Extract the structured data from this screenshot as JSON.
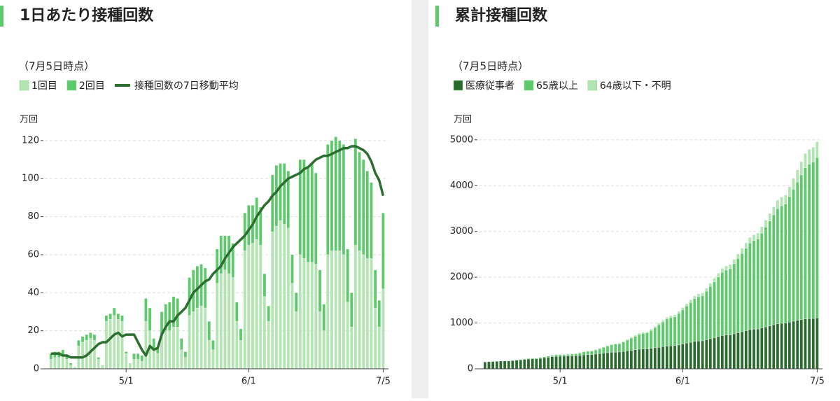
{
  "chart_data": [
    {
      "type": "bar",
      "stacked": true,
      "title": "1日あたり接種回数",
      "subtitle": "（7月5日時点）",
      "y_label": "万回",
      "categories": [
        null,
        null,
        null,
        null,
        null,
        null,
        null,
        null,
        null,
        null,
        null,
        null,
        null,
        null,
        null,
        null,
        null,
        null,
        null,
        "5/1",
        null,
        null,
        null,
        null,
        null,
        null,
        null,
        null,
        null,
        null,
        null,
        null,
        null,
        null,
        null,
        null,
        null,
        null,
        null,
        null,
        null,
        null,
        null,
        null,
        null,
        null,
        null,
        null,
        null,
        null,
        "6/1",
        null,
        null,
        null,
        null,
        null,
        null,
        null,
        null,
        null,
        null,
        null,
        null,
        null,
        null,
        null,
        null,
        null,
        null,
        null,
        null,
        null,
        null,
        null,
        null,
        null,
        null,
        null,
        null,
        null,
        null,
        null,
        null,
        null,
        "7/5"
      ],
      "series": [
        {
          "name": "1回目",
          "type": "bar",
          "color": "#b3e5b3",
          "values": [
            5,
            6,
            6,
            7,
            5,
            2,
            1,
            12,
            14,
            15,
            16,
            15,
            5,
            2,
            25,
            26,
            28,
            26,
            25,
            8,
            3,
            5,
            5,
            4,
            25,
            20,
            10,
            8,
            18,
            20,
            20,
            22,
            22,
            10,
            6,
            28,
            30,
            32,
            33,
            32,
            15,
            10,
            45,
            50,
            52,
            50,
            48,
            25,
            15,
            62,
            65,
            66,
            68,
            65,
            38,
            25,
            72,
            75,
            78,
            76,
            74,
            45,
            30,
            60,
            58,
            56,
            56,
            55,
            30,
            20,
            60,
            62,
            62,
            62,
            60,
            35,
            22,
            65,
            62,
            60,
            58,
            58,
            32,
            22,
            42
          ]
        },
        {
          "name": "2回目",
          "type": "bar",
          "color": "#5cc96a",
          "values": [
            3,
            3,
            3,
            3,
            2,
            1,
            0,
            3,
            3,
            3,
            3,
            3,
            1,
            0,
            3,
            3,
            4,
            3,
            3,
            1,
            0,
            3,
            3,
            3,
            12,
            12,
            6,
            3,
            12,
            14,
            15,
            16,
            15,
            6,
            3,
            20,
            22,
            22,
            22,
            21,
            10,
            5,
            18,
            20,
            18,
            20,
            18,
            10,
            6,
            20,
            21,
            20,
            22,
            20,
            12,
            8,
            30,
            32,
            30,
            32,
            30,
            15,
            10,
            50,
            52,
            50,
            52,
            48,
            22,
            14,
            58,
            58,
            60,
            58,
            58,
            28,
            18,
            56,
            52,
            50,
            46,
            40,
            20,
            14,
            40
          ]
        },
        {
          "name": "接種回数の7日移動平均",
          "type": "line",
          "color": "#2c6e2f",
          "values": [
            8,
            8,
            8,
            7,
            7,
            6,
            6,
            6,
            6,
            7,
            9,
            11,
            13,
            14,
            14,
            16,
            18,
            19,
            17,
            18,
            18,
            18,
            14,
            10,
            7,
            12,
            10,
            11,
            18,
            22,
            25,
            25,
            28,
            30,
            32,
            36,
            40,
            42,
            44,
            46,
            47,
            50,
            52,
            54,
            58,
            61,
            64,
            66,
            68,
            70,
            73,
            76,
            80,
            83,
            86,
            88,
            91,
            93,
            96,
            98,
            100,
            101,
            102,
            103,
            105,
            106,
            108,
            110,
            111,
            112,
            112,
            113,
            114,
            115,
            116,
            116,
            117,
            117,
            116,
            115,
            113,
            109,
            103,
            99,
            91
          ]
        }
      ],
      "ylim": [
        0,
        124
      ],
      "yticks": [
        0,
        20,
        40,
        60,
        80,
        100,
        120
      ],
      "grid": true
    },
    {
      "type": "bar",
      "stacked": true,
      "title": "累計接種回数",
      "subtitle": "（7月5日時点）",
      "y_label": "万回",
      "categories": [
        null,
        null,
        null,
        null,
        null,
        null,
        null,
        null,
        null,
        null,
        null,
        null,
        null,
        null,
        null,
        null,
        null,
        null,
        null,
        "5/1",
        null,
        null,
        null,
        null,
        null,
        null,
        null,
        null,
        null,
        null,
        null,
        null,
        null,
        null,
        null,
        null,
        null,
        null,
        null,
        null,
        null,
        null,
        null,
        null,
        null,
        null,
        null,
        null,
        null,
        null,
        "6/1",
        null,
        null,
        null,
        null,
        null,
        null,
        null,
        null,
        null,
        null,
        null,
        null,
        null,
        null,
        null,
        null,
        null,
        null,
        null,
        null,
        null,
        null,
        null,
        null,
        null,
        null,
        null,
        null,
        null,
        null,
        null,
        null,
        null,
        "7/5"
      ],
      "series": [
        {
          "name": "医療従事者",
          "type": "bar",
          "color": "#2a6a2e",
          "values": [
            150,
            155,
            160,
            165,
            170,
            172,
            173,
            180,
            188,
            196,
            205,
            214,
            216,
            217,
            228,
            240,
            252,
            262,
            272,
            275,
            276,
            279,
            282,
            285,
            295,
            305,
            310,
            313,
            322,
            332,
            342,
            352,
            362,
            366,
            368,
            380,
            392,
            404,
            416,
            428,
            433,
            436,
            448,
            460,
            472,
            484,
            496,
            502,
            506,
            520,
            540,
            560,
            580,
            600,
            608,
            612,
            635,
            658,
            681,
            704,
            727,
            736,
            741,
            764,
            787,
            810,
            833,
            856,
            865,
            870,
            893,
            916,
            939,
            962,
            985,
            994,
            999,
            1020,
            1040,
            1058,
            1074,
            1088,
            1096,
            1100,
            1110
          ]
        },
        {
          "name": "65歳以上",
          "type": "bar",
          "color": "#5cc96a",
          "values": [
            0,
            1,
            2,
            3,
            4,
            4,
            4,
            6,
            8,
            10,
            12,
            14,
            15,
            15,
            18,
            22,
            26,
            30,
            34,
            35,
            35,
            40,
            42,
            44,
            55,
            66,
            72,
            76,
            90,
            108,
            126,
            144,
            162,
            172,
            178,
            205,
            235,
            265,
            295,
            325,
            340,
            348,
            390,
            440,
            490,
            540,
            590,
            615,
            630,
            690,
            750,
            810,
            870,
            930,
            965,
            985,
            1060,
            1140,
            1220,
            1300,
            1380,
            1420,
            1445,
            1530,
            1620,
            1710,
            1800,
            1890,
            1935,
            1965,
            2070,
            2180,
            2290,
            2400,
            2510,
            2565,
            2600,
            2740,
            2880,
            3020,
            3160,
            3300,
            3370,
            3410,
            3500
          ]
        },
        {
          "name": "64歳以下・不明",
          "type": "bar",
          "color": "#b3e5b3",
          "values": [
            5,
            5,
            5,
            6,
            6,
            6,
            6,
            6,
            7,
            7,
            7,
            8,
            8,
            8,
            8,
            8,
            9,
            9,
            9,
            9,
            9,
            9,
            9,
            9,
            10,
            10,
            10,
            10,
            11,
            12,
            13,
            14,
            15,
            15,
            15,
            17,
            19,
            21,
            23,
            25,
            26,
            26,
            28,
            31,
            34,
            37,
            40,
            41,
            42,
            45,
            49,
            53,
            57,
            61,
            63,
            64,
            68,
            73,
            78,
            83,
            88,
            90,
            91,
            97,
            104,
            111,
            118,
            125,
            128,
            130,
            140,
            152,
            164,
            176,
            188,
            193,
            196,
            215,
            240,
            265,
            290,
            315,
            325,
            330,
            350
          ]
        }
      ],
      "ylim": [
        0,
        5150
      ],
      "yticks": [
        0,
        1000,
        2000,
        3000,
        4000,
        5000
      ],
      "grid": true
    }
  ]
}
